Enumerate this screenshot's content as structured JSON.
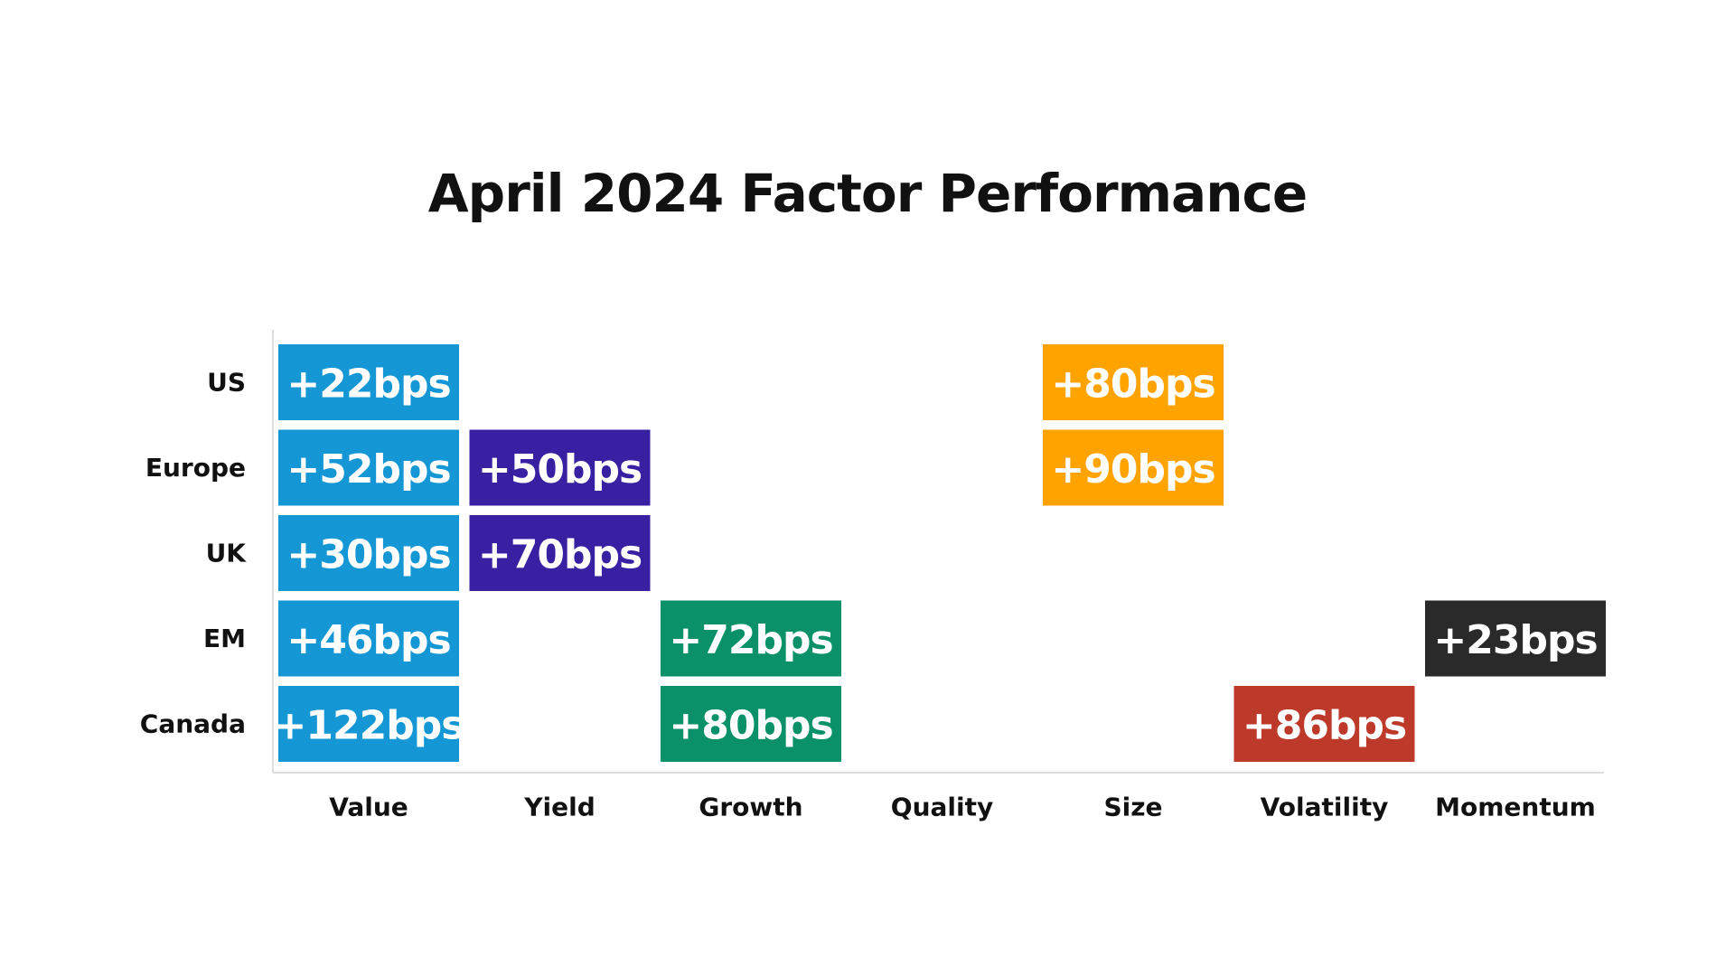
{
  "chart_data": {
    "type": "heatmap",
    "title": "April 2024 Factor Performance",
    "xlabel": "",
    "ylabel": "",
    "grid": false,
    "columns": [
      "Value",
      "Yield",
      "Growth",
      "Quality",
      "Size",
      "Volatility",
      "Momentum"
    ],
    "rows": [
      "US",
      "Europe",
      "UK",
      "EM",
      "Canada"
    ],
    "unit": "bps",
    "cells": [
      {
        "row": "US",
        "column": "Value",
        "value": 22,
        "label": "+22bps"
      },
      {
        "row": "US",
        "column": "Size",
        "value": 80,
        "label": "+80bps"
      },
      {
        "row": "Europe",
        "column": "Value",
        "value": 52,
        "label": "+52bps"
      },
      {
        "row": "Europe",
        "column": "Yield",
        "value": 50,
        "label": "+50bps"
      },
      {
        "row": "Europe",
        "column": "Size",
        "value": 90,
        "label": "+90bps"
      },
      {
        "row": "UK",
        "column": "Value",
        "value": 30,
        "label": "+30bps"
      },
      {
        "row": "UK",
        "column": "Yield",
        "value": 70,
        "label": "+70bps"
      },
      {
        "row": "EM",
        "column": "Value",
        "value": 46,
        "label": "+46bps"
      },
      {
        "row": "EM",
        "column": "Growth",
        "value": 72,
        "label": "+72bps"
      },
      {
        "row": "EM",
        "column": "Momentum",
        "value": 23,
        "label": "+23bps"
      },
      {
        "row": "Canada",
        "column": "Value",
        "value": 122,
        "label": "+122bps"
      },
      {
        "row": "Canada",
        "column": "Growth",
        "value": 80,
        "label": "+80bps"
      },
      {
        "row": "Canada",
        "column": "Volatility",
        "value": 86,
        "label": "+86bps"
      }
    ],
    "column_colors": {
      "Value": "#1497D4",
      "Yield": "#3720A1",
      "Growth": "#0A916A",
      "Quality": "#7A7A7A",
      "Size": "#FFA300",
      "Volatility": "#BD3A2B",
      "Momentum": "#2A2A2A"
    },
    "axis_color": "#DDDDDD"
  }
}
